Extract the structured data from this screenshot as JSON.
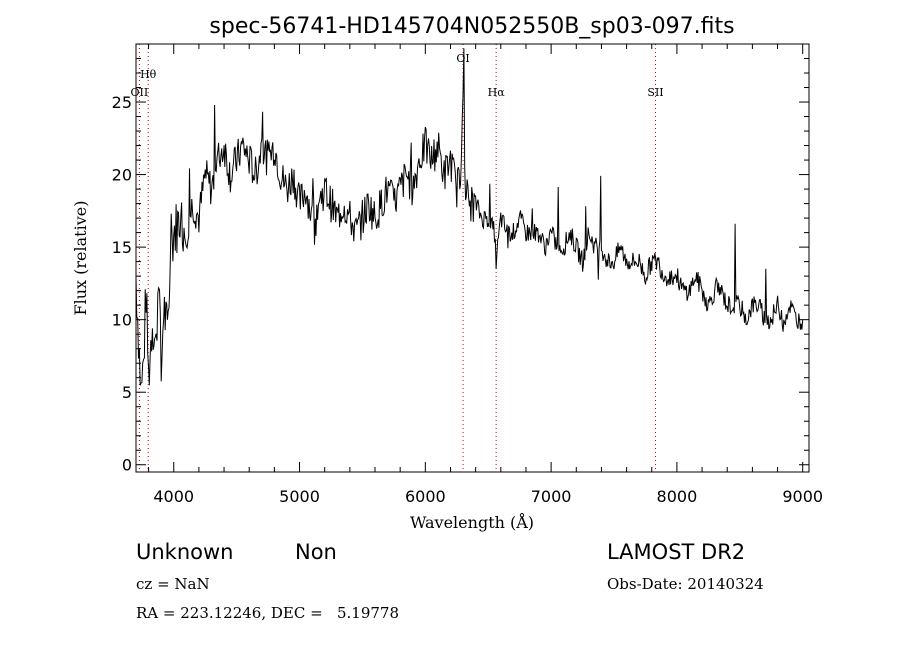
{
  "chart_data": {
    "type": "line",
    "title": "spec-56741-HD145704N052550B_sp03-097.fits",
    "xlabel": "Wavelength (Å)",
    "ylabel": "Flux (relative)",
    "xlim": [
      3700,
      9050
    ],
    "ylim": [
      -0.5,
      29
    ],
    "xticks": [
      4000,
      5000,
      6000,
      7000,
      8000,
      9000
    ],
    "yticks": [
      0,
      5,
      10,
      15,
      20,
      25
    ],
    "grid": false,
    "line_color": "#000000",
    "marker_color": "#cc0000",
    "spectral_lines": [
      {
        "name": "Hθ",
        "wavelength": 3797
      },
      {
        "name": "OII",
        "wavelength": 3727
      },
      {
        "name": "OI",
        "wavelength": 6300
      },
      {
        "name": "Hα",
        "wavelength": 6563
      },
      {
        "name": "SII",
        "wavelength": 7830
      }
    ],
    "series": [
      {
        "x": [
          3700,
          3720,
          3740,
          3760,
          3780,
          3800,
          3830,
          3860,
          3880,
          3900,
          3920,
          3950,
          3980,
          4000,
          4050,
          4100,
          4150,
          4200,
          4250,
          4300,
          4350,
          4400,
          4450,
          4500,
          4550,
          4600,
          4650,
          4700,
          4750,
          4800,
          4850,
          4900,
          4950,
          5000,
          5050,
          5100,
          5150,
          5200,
          5250,
          5300,
          5350,
          5400,
          5450,
          5500,
          5550,
          5600,
          5650,
          5700,
          5750,
          5800,
          5850,
          5900,
          5950,
          6000,
          6050,
          6100,
          6150,
          6200,
          6250,
          6280,
          6300,
          6320,
          6350,
          6400,
          6450,
          6500,
          6550,
          6563,
          6600,
          6650,
          6700,
          6750,
          6800,
          6850,
          6900,
          6950,
          7000,
          7050,
          7100,
          7150,
          7200,
          7250,
          7300,
          7350,
          7400,
          7450,
          7500,
          7550,
          7600,
          7650,
          7700,
          7750,
          7800,
          7850,
          7900,
          7950,
          8000,
          8050,
          8100,
          8150,
          8200,
          8250,
          8300,
          8350,
          8400,
          8450,
          8500,
          8550,
          8600,
          8650,
          8700,
          8750,
          8800,
          8850,
          8900,
          8950,
          9000
        ],
        "values": [
          13,
          9,
          5,
          7,
          12,
          6,
          10,
          8,
          14,
          6,
          11,
          9,
          15,
          16,
          17,
          16,
          18,
          17,
          20,
          19,
          21,
          22,
          20,
          21,
          22,
          21,
          20,
          22,
          21,
          22,
          20,
          19,
          20,
          18,
          19,
          17,
          18,
          19,
          18,
          17,
          18,
          17,
          16,
          17,
          18,
          17,
          18,
          19,
          18,
          19,
          20,
          19,
          21,
          22,
          21,
          22,
          20,
          21,
          19,
          20,
          27,
          19,
          18,
          18,
          17,
          17,
          16,
          14,
          17,
          16,
          16,
          17,
          16,
          16,
          16,
          15,
          16,
          15,
          15,
          16,
          15,
          14,
          16,
          15,
          15,
          14,
          14,
          15,
          14,
          14,
          14,
          13,
          14,
          14,
          13,
          13,
          13,
          12,
          12,
          13,
          12,
          11,
          12,
          12,
          11,
          11,
          11,
          10,
          11,
          11,
          10,
          10,
          11,
          10,
          11,
          10,
          10
        ]
      }
    ]
  },
  "info": {
    "object_class": "Unknown",
    "object_subclass": "Non",
    "survey": "LAMOST DR2",
    "cz": "cz = NaN",
    "obs_date": "Obs-Date: 20140324",
    "coords": "RA = 223.12246, DEC =   5.19778"
  }
}
